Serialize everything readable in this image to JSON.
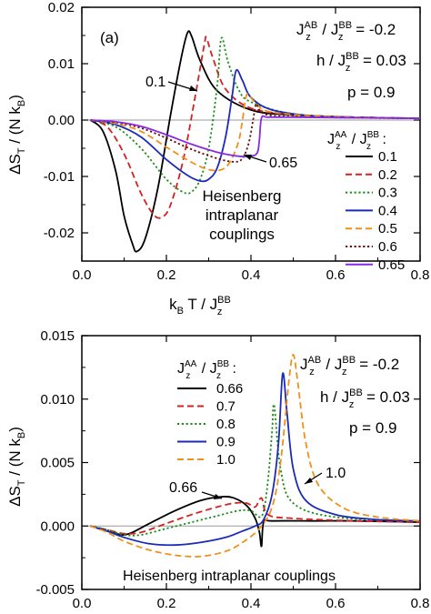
{
  "chart_data": [
    {
      "type": "line",
      "panel_label": "(a)",
      "xlabel": {
        "main": "k",
        "sub": "B",
        "mid": " T / J",
        "supsub_sup": "BB",
        "supsub_sub": "z"
      },
      "ylabel": {
        "main": "ΔS",
        "sub1": "T",
        "mid": " / (N k",
        "sub2": "B",
        "end": ")"
      },
      "xlim": [
        0,
        0.8
      ],
      "ylim": [
        -0.025,
        0.02
      ],
      "xticks": [
        0.0,
        0.2,
        0.4,
        0.6,
        0.8
      ],
      "xticklabels": [
        "0.0",
        "0.2",
        "0.4",
        "0.6",
        "0.8"
      ],
      "yticks": [
        0.02,
        0.01,
        0.0,
        -0.01,
        -0.02
      ],
      "yticklabels": [
        "0.02",
        "0.01",
        "0.00",
        "-0.01",
        "-0.02"
      ],
      "params": [
        {
          "left": "J",
          "lsup": "AB",
          "lsub": "z",
          "mid": " / J",
          "rsup": "BB",
          "rsub": "z",
          "value": " = -0.2"
        },
        {
          "left": "h / J",
          "rsup": "BB",
          "rsub": "z",
          "value": " = 0.03"
        },
        {
          "left": "p = 0.9"
        }
      ],
      "legend_title": {
        "left": "J",
        "lsup": "AA",
        "lsub": "z",
        "mid": " / J",
        "rsup": "BB",
        "rsub": "z",
        "end": " :"
      },
      "legend_position": "right",
      "annotation": [
        "Heisenberg",
        "intraplanar",
        "couplings"
      ],
      "curve_labels": [
        "0.1",
        "0.65"
      ],
      "series": [
        {
          "name": "0.1",
          "color": "#000000",
          "dash": "solid",
          "x": [
            0.02,
            0.05,
            0.08,
            0.1,
            0.12,
            0.13,
            0.15,
            0.18,
            0.21,
            0.235,
            0.25,
            0.26,
            0.28,
            0.32,
            0.4,
            0.5,
            0.65,
            0.8
          ],
          "y": [
            0.0,
            -0.002,
            -0.009,
            -0.017,
            -0.022,
            -0.0233,
            -0.021,
            -0.012,
            0.001,
            0.011,
            0.0155,
            0.0148,
            0.0105,
            0.0052,
            0.0018,
            0.0009,
            0.0005,
            0.0003
          ]
        },
        {
          "name": "0.2",
          "color": "#d62020",
          "dash": "dashed",
          "x": [
            0.02,
            0.06,
            0.1,
            0.14,
            0.17,
            0.19,
            0.21,
            0.24,
            0.27,
            0.29,
            0.295,
            0.31,
            0.34,
            0.4,
            0.5,
            0.65,
            0.8
          ],
          "y": [
            0.0,
            -0.0012,
            -0.006,
            -0.013,
            -0.0168,
            -0.0172,
            -0.015,
            -0.007,
            0.005,
            0.0135,
            0.0145,
            0.011,
            0.0055,
            0.0021,
            0.001,
            0.0005,
            0.0003
          ]
        },
        {
          "name": "0.3",
          "color": "#1a8f1a",
          "dash": "dotted",
          "x": [
            0.02,
            0.08,
            0.14,
            0.2,
            0.24,
            0.26,
            0.28,
            0.3,
            0.32,
            0.33,
            0.345,
            0.37,
            0.4,
            0.5,
            0.65,
            0.8
          ],
          "y": [
            0.0,
            -0.0012,
            -0.005,
            -0.0105,
            -0.0128,
            -0.0127,
            -0.0105,
            -0.005,
            0.006,
            0.0145,
            0.0105,
            0.0055,
            0.0032,
            0.0011,
            0.0005,
            0.0003
          ]
        },
        {
          "name": "0.4",
          "color": "#1a2bb8",
          "dash": "solid",
          "x": [
            0.02,
            0.08,
            0.14,
            0.2,
            0.25,
            0.28,
            0.3,
            0.32,
            0.34,
            0.355,
            0.365,
            0.38,
            0.4,
            0.45,
            0.55,
            0.65,
            0.8
          ],
          "y": [
            0.0,
            -0.0008,
            -0.003,
            -0.007,
            -0.0098,
            -0.0108,
            -0.0105,
            -0.0085,
            -0.003,
            0.004,
            0.0088,
            0.007,
            0.004,
            0.0018,
            0.0007,
            0.0005,
            0.0003
          ]
        },
        {
          "name": "0.5",
          "color": "#f0901a",
          "dash": "dashed",
          "x": [
            0.02,
            0.08,
            0.14,
            0.2,
            0.26,
            0.3,
            0.33,
            0.35,
            0.37,
            0.38,
            0.39,
            0.405,
            0.43,
            0.47,
            0.55,
            0.65,
            0.8
          ],
          "y": [
            0.0,
            -0.0006,
            -0.002,
            -0.0048,
            -0.0075,
            -0.0088,
            -0.0088,
            -0.0075,
            -0.004,
            0.0,
            0.0045,
            0.0035,
            0.0018,
            0.0012,
            0.0007,
            0.0005,
            0.0003
          ]
        },
        {
          "name": "0.6",
          "color": "#6b0a0a",
          "dash": "dotted",
          "x": [
            0.02,
            0.08,
            0.14,
            0.2,
            0.26,
            0.32,
            0.36,
            0.38,
            0.395,
            0.405,
            0.412,
            0.42,
            0.44,
            0.5,
            0.65,
            0.8
          ],
          "y": [
            0.0,
            -0.0004,
            -0.0014,
            -0.0032,
            -0.0052,
            -0.0068,
            -0.0074,
            -0.0068,
            -0.004,
            0.0,
            0.0028,
            0.0018,
            0.0009,
            0.0006,
            0.0004,
            0.0003
          ]
        },
        {
          "name": "0.65",
          "color": "#8a2be2",
          "dash": "solid",
          "x": [
            0.02,
            0.08,
            0.14,
            0.2,
            0.26,
            0.32,
            0.37,
            0.4,
            0.415,
            0.42,
            0.425,
            0.44,
            0.5,
            0.65,
            0.8
          ],
          "y": [
            0.0,
            -0.0003,
            -0.0011,
            -0.0026,
            -0.0043,
            -0.0057,
            -0.0064,
            -0.0064,
            -0.0058,
            -0.0035,
            0.0004,
            0.0005,
            0.0005,
            0.0004,
            0.0003
          ]
        }
      ]
    },
    {
      "type": "line",
      "panel_label": "",
      "xlabel": {
        "main": "",
        "sub": "",
        "mid": "",
        "supsub_sup": "",
        "supsub_sub": ""
      },
      "ylabel": {
        "main": "ΔS",
        "sub1": "T",
        "mid": " / (N k",
        "sub2": "B",
        "end": ")"
      },
      "xlim": [
        0,
        0.8
      ],
      "ylim": [
        -0.005,
        0.015
      ],
      "xticks": [
        0.0,
        0.2,
        0.4,
        0.6,
        0.8
      ],
      "xticklabels": [
        "0.0",
        "0.2",
        "0.4",
        "0.6",
        "0.8"
      ],
      "yticks": [
        0.015,
        0.01,
        0.005,
        0.0,
        -0.005
      ],
      "yticklabels": [
        "0.015",
        "0.010",
        "0.005",
        "0.000",
        "-0.005"
      ],
      "params": [
        {
          "left": "J",
          "lsup": "AB",
          "lsub": "z",
          "mid": " / J",
          "rsup": "BB",
          "rsub": "z",
          "value": " = -0.2"
        },
        {
          "left": "h / J",
          "rsup": "BB",
          "rsub": "z",
          "value": " = 0.03"
        },
        {
          "left": "p = 0.9"
        }
      ],
      "legend_title": {
        "left": "J",
        "lsup": "AA",
        "lsub": "z",
        "mid": " / J",
        "rsup": "BB",
        "rsub": "z",
        "end": " :"
      },
      "legend_position": "top-left",
      "annotation": [
        "Heisenberg intraplanar couplings"
      ],
      "curve_labels": [
        "0.66",
        "1.0"
      ],
      "series": [
        {
          "name": "0.66",
          "color": "#000000",
          "dash": "solid",
          "x": [
            0.02,
            0.05,
            0.08,
            0.1,
            0.12,
            0.16,
            0.22,
            0.28,
            0.33,
            0.36,
            0.39,
            0.41,
            0.42,
            0.425,
            0.43,
            0.45,
            0.55,
            0.65,
            0.8
          ],
          "y": [
            0.0,
            -0.0003,
            -0.0006,
            -0.0007,
            -0.0005,
            0.0002,
            0.0012,
            0.002,
            0.0023,
            0.0022,
            0.0016,
            0.0006,
            -0.0005,
            -0.0016,
            0.0003,
            0.0004,
            0.0004,
            0.0004,
            0.0003
          ]
        },
        {
          "name": "0.7",
          "color": "#d62020",
          "dash": "dashed",
          "x": [
            0.02,
            0.06,
            0.1,
            0.14,
            0.2,
            0.26,
            0.32,
            0.36,
            0.39,
            0.41,
            0.425,
            0.44,
            0.5,
            0.65,
            0.8
          ],
          "y": [
            0.0,
            -0.0003,
            -0.0006,
            -0.0005,
            0.0002,
            0.0009,
            0.0015,
            0.0018,
            0.0018,
            0.0015,
            0.0022,
            0.0009,
            0.0006,
            0.0004,
            0.0003
          ]
        },
        {
          "name": "0.8",
          "color": "#1a8f1a",
          "dash": "dotted",
          "x": [
            0.02,
            0.06,
            0.1,
            0.14,
            0.2,
            0.26,
            0.32,
            0.37,
            0.4,
            0.42,
            0.43,
            0.44,
            0.45,
            0.455,
            0.47,
            0.5,
            0.6,
            0.8
          ],
          "y": [
            0.0,
            -0.0003,
            -0.0007,
            -0.0007,
            -0.0002,
            0.0003,
            0.0008,
            0.0012,
            0.0012,
            0.0007,
            0.0012,
            0.0035,
            0.0075,
            0.0095,
            0.0045,
            0.0018,
            0.0007,
            0.0004
          ]
        },
        {
          "name": "0.9",
          "color": "#1a2bb8",
          "dash": "solid",
          "x": [
            0.02,
            0.06,
            0.1,
            0.16,
            0.22,
            0.28,
            0.34,
            0.38,
            0.41,
            0.43,
            0.45,
            0.465,
            0.475,
            0.485,
            0.5,
            0.53,
            0.6,
            0.7,
            0.8
          ],
          "y": [
            0.0,
            -0.0004,
            -0.0009,
            -0.0014,
            -0.0015,
            -0.0013,
            -0.0009,
            -0.0004,
            0.0,
            0.0005,
            0.0025,
            0.0065,
            0.012,
            0.009,
            0.0045,
            0.002,
            0.0009,
            0.0005,
            0.0004
          ]
        },
        {
          "name": "1.0",
          "color": "#f0901a",
          "dash": "dashed",
          "x": [
            0.02,
            0.06,
            0.1,
            0.16,
            0.22,
            0.28,
            0.34,
            0.38,
            0.42,
            0.45,
            0.47,
            0.49,
            0.5,
            0.51,
            0.53,
            0.56,
            0.62,
            0.7,
            0.8
          ],
          "y": [
            0.0,
            -0.0005,
            -0.0012,
            -0.0019,
            -0.0023,
            -0.0024,
            -0.002,
            -0.0013,
            -0.0002,
            0.0015,
            0.005,
            0.0115,
            0.0135,
            0.0115,
            0.0065,
            0.0032,
            0.0014,
            0.0007,
            0.0004
          ]
        }
      ]
    }
  ]
}
